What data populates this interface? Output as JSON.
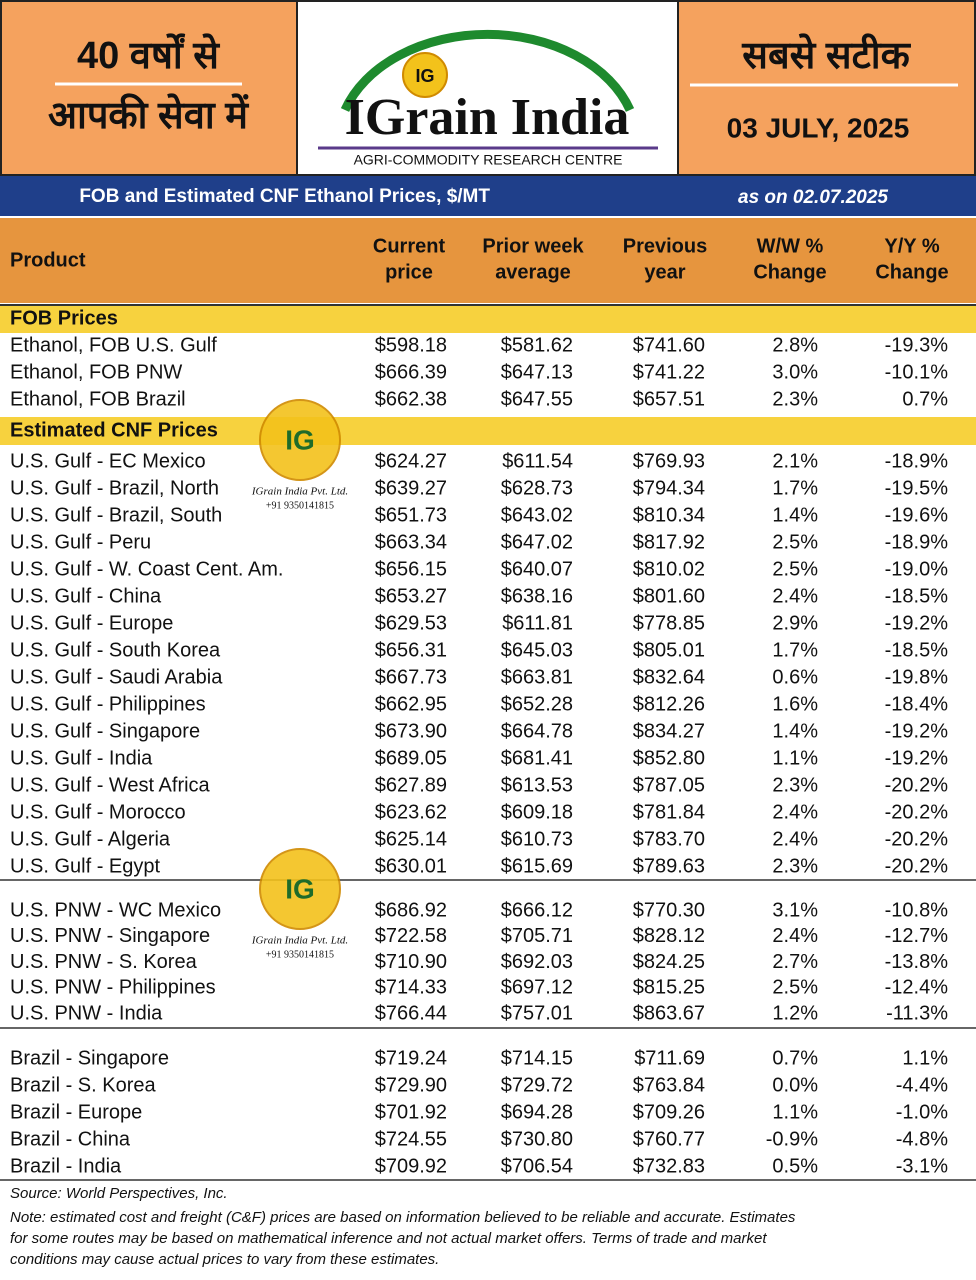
{
  "header": {
    "left_line1": "40 वर्षों से",
    "left_line2": "आपकी सेवा में",
    "logo_mark": "IG",
    "logo_title": "IGrain India",
    "logo_subtitle": "AGRI-COMMODITY RESEARCH CENTRE",
    "right_tagline": "सबसे सटीक",
    "date": "03 JULY, 2025"
  },
  "banner": {
    "title": "FOB and Estimated CNF Ethanol Prices, $/MT",
    "as_on": "as on 02.07.2025"
  },
  "table": {
    "columns": [
      [
        "Product"
      ],
      [
        "Current",
        "price"
      ],
      [
        "Prior week",
        "average"
      ],
      [
        "Previous",
        "year"
      ],
      [
        "W/W %",
        "Change"
      ],
      [
        "Y/Y %",
        "Change"
      ]
    ],
    "sections": [
      {
        "title": "FOB Prices",
        "groups": [
          [
            [
              "Ethanol, FOB U.S. Gulf",
              "$598.18",
              "$581.62",
              "$741.60",
              "2.8%",
              "-19.3%"
            ],
            [
              "Ethanol, FOB PNW",
              "$666.39",
              "$647.13",
              "$741.22",
              "3.0%",
              "-10.1%"
            ],
            [
              "Ethanol, FOB Brazil",
              "$662.38",
              "$647.55",
              "$657.51",
              "2.3%",
              "0.7%"
            ]
          ]
        ]
      },
      {
        "title": "Estimated CNF Prices",
        "groups": [
          [
            [
              "U.S. Gulf - EC Mexico",
              "$624.27",
              "$611.54",
              "$769.93",
              "2.1%",
              "-18.9%"
            ],
            [
              "U.S. Gulf - Brazil, North",
              "$639.27",
              "$628.73",
              "$794.34",
              "1.7%",
              "-19.5%"
            ],
            [
              "U.S. Gulf - Brazil, South",
              "$651.73",
              "$643.02",
              "$810.34",
              "1.4%",
              "-19.6%"
            ],
            [
              "U.S. Gulf - Peru",
              "$663.34",
              "$647.02",
              "$817.92",
              "2.5%",
              "-18.9%"
            ],
            [
              "U.S. Gulf - W. Coast Cent. Am.",
              "$656.15",
              "$640.07",
              "$810.02",
              "2.5%",
              "-19.0%"
            ],
            [
              "U.S. Gulf - China",
              "$653.27",
              "$638.16",
              "$801.60",
              "2.4%",
              "-18.5%"
            ],
            [
              "U.S. Gulf - Europe",
              "$629.53",
              "$611.81",
              "$778.85",
              "2.9%",
              "-19.2%"
            ],
            [
              "U.S. Gulf - South Korea",
              "$656.31",
              "$645.03",
              "$805.01",
              "1.7%",
              "-18.5%"
            ],
            [
              "U.S. Gulf - Saudi Arabia",
              "$667.73",
              "$663.81",
              "$832.64",
              "0.6%",
              "-19.8%"
            ],
            [
              "U.S. Gulf - Philippines",
              "$662.95",
              "$652.28",
              "$812.26",
              "1.6%",
              "-18.4%"
            ],
            [
              "U.S. Gulf - Singapore",
              "$673.90",
              "$664.78",
              "$834.27",
              "1.4%",
              "-19.2%"
            ],
            [
              "U.S. Gulf - India",
              "$689.05",
              "$681.41",
              "$852.80",
              "1.1%",
              "-19.2%"
            ],
            [
              "U.S. Gulf - West Africa",
              "$627.89",
              "$613.53",
              "$787.05",
              "2.3%",
              "-20.2%"
            ],
            [
              "U.S. Gulf - Morocco",
              "$623.62",
              "$609.18",
              "$781.84",
              "2.4%",
              "-20.2%"
            ],
            [
              "U.S. Gulf - Algeria",
              "$625.14",
              "$610.73",
              "$783.70",
              "2.4%",
              "-20.2%"
            ],
            [
              "U.S. Gulf - Egypt",
              "$630.01",
              "$615.69",
              "$789.63",
              "2.3%",
              "-20.2%"
            ]
          ],
          [
            [
              "U.S. PNW - WC Mexico",
              "$686.92",
              "$666.12",
              "$770.30",
              "3.1%",
              "-10.8%"
            ],
            [
              "U.S. PNW - Singapore",
              "$722.58",
              "$705.71",
              "$828.12",
              "2.4%",
              "-12.7%"
            ],
            [
              "U.S. PNW - S. Korea",
              "$710.90",
              "$692.03",
              "$824.25",
              "2.7%",
              "-13.8%"
            ],
            [
              "U.S. PNW - Philippines",
              "$714.33",
              "$697.12",
              "$815.25",
              "2.5%",
              "-12.4%"
            ],
            [
              "U.S. PNW - India",
              "$766.44",
              "$757.01",
              "$863.67",
              "1.2%",
              "-11.3%"
            ]
          ],
          [
            [
              "Brazil - Singapore",
              "$719.24",
              "$714.15",
              "$711.69",
              "0.7%",
              "1.1%"
            ],
            [
              "Brazil - S. Korea",
              "$729.90",
              "$729.72",
              "$763.84",
              "0.0%",
              "-4.4%"
            ],
            [
              "Brazil - Europe",
              "$701.92",
              "$694.28",
              "$709.26",
              "1.1%",
              "-1.0%"
            ],
            [
              "Brazil - China",
              "$724.55",
              "$730.80",
              "$760.77",
              "-0.9%",
              "-4.8%"
            ],
            [
              "Brazil - India",
              "$709.92",
              "$706.54",
              "$732.83",
              "0.5%",
              "-3.1%"
            ]
          ]
        ]
      }
    ]
  },
  "watermark": {
    "mark": "IG",
    "company": "IGrain India Pvt. Ltd.",
    "phone": "+91 9350141815"
  },
  "footer": {
    "source": "Source: World Perspectives, Inc.",
    "note": [
      "Note: estimated cost and freight (C&F) prices are based on information believed to be reliable and accurate. Estimates",
      "for some routes may be based on mathematical inference and not actual market offers. Terms of trade and market",
      "conditions may cause actual prices to vary from these estimates."
    ]
  }
}
